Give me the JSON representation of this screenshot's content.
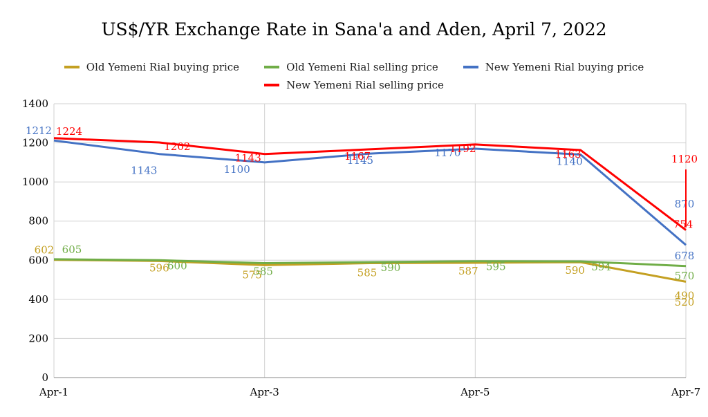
{
  "chart_data": {
    "type": "line",
    "title": "US$/YR Exchange Rate in Sana'a and Aden, April 7, 2022",
    "x_tick_labels": [
      "Apr-1",
      "Apr-3",
      "Apr-5",
      "Apr-7"
    ],
    "x_tick_indices": [
      0,
      2,
      4,
      6
    ],
    "ylim": [
      0,
      1400
    ],
    "y_ticks": [
      0,
      200,
      400,
      600,
      800,
      1000,
      1200,
      1400
    ],
    "grid": true,
    "legend_position": "top",
    "series": [
      {
        "name": "Old Yemeni Rial buying price",
        "color": "#c4a022",
        "values": [
          602,
          596,
          575,
          585,
          587,
          590,
          490
        ],
        "labels": [
          "602",
          "596",
          "575",
          "585",
          "587",
          "590",
          "490"
        ]
      },
      {
        "name": "Old Yemeni Rial selling price",
        "color": "#70ad47",
        "values": [
          605,
          600,
          585,
          590,
          595,
          594,
          570
        ],
        "labels": [
          "605",
          "600",
          "585",
          "590",
          "595",
          "594",
          "570"
        ]
      },
      {
        "name": "New Yemeni Rial buying price",
        "color": "#4472c4",
        "values": [
          1212,
          1143,
          1100,
          1145,
          1170,
          1140,
          678
        ],
        "labels": [
          "1212",
          "1143",
          "1100",
          "1145",
          "1170",
          "1140",
          "678"
        ]
      },
      {
        "name": "New Yemeni Rial selling price",
        "color": "#ff0000",
        "values": [
          1224,
          1202,
          1143,
          1167,
          1192,
          1163,
          754
        ],
        "labels": [
          "1224",
          "1202",
          "1143",
          "1167",
          "1192",
          "1163",
          "754"
        ]
      }
    ],
    "annotations": [
      {
        "text": "1120",
        "color": "#ff0000"
      },
      {
        "text": "870",
        "color": "#4472c4"
      },
      {
        "text": "520",
        "color": "#c4a022"
      }
    ]
  }
}
